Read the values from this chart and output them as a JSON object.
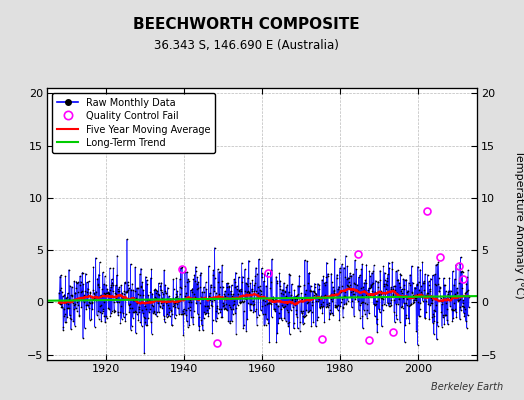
{
  "title": "BEECHWORTH COMPOSITE",
  "subtitle": "36.343 S, 146.690 E (Australia)",
  "ylabel": "Temperature Anomaly (°C)",
  "credit": "Berkeley Earth",
  "xlim": [
    1905,
    2015
  ],
  "ylim": [
    -5.5,
    20.5
  ],
  "yticks": [
    -5,
    0,
    5,
    10,
    15,
    20
  ],
  "xticks": [
    1920,
    1940,
    1960,
    1980,
    2000
  ],
  "start_year": 1908,
  "end_year": 2013,
  "seed": 42,
  "raw_color": "#0000ff",
  "dot_color": "#000000",
  "moving_avg_color": "#ff0000",
  "trend_color": "#00cc00",
  "qc_fail_color": "#ff00ff",
  "background_color": "#e0e0e0",
  "plot_bg_color": "#ffffff",
  "long_term_trend_intercept": 0.18,
  "long_term_trend_slope": 0.004,
  "qc_fail_points": [
    {
      "year": 1939.5,
      "value": 3.2
    },
    {
      "year": 1948.5,
      "value": -3.9
    },
    {
      "year": 1961.5,
      "value": 2.8
    },
    {
      "year": 1975.3,
      "value": -3.5
    },
    {
      "year": 1984.5,
      "value": 4.6
    },
    {
      "year": 1987.5,
      "value": -3.6
    },
    {
      "year": 1993.5,
      "value": -2.8
    },
    {
      "year": 2002.3,
      "value": 8.7
    },
    {
      "year": 2005.5,
      "value": 4.3
    },
    {
      "year": 2010.5,
      "value": 3.5
    },
    {
      "year": 2011.5,
      "value": 2.2
    }
  ]
}
